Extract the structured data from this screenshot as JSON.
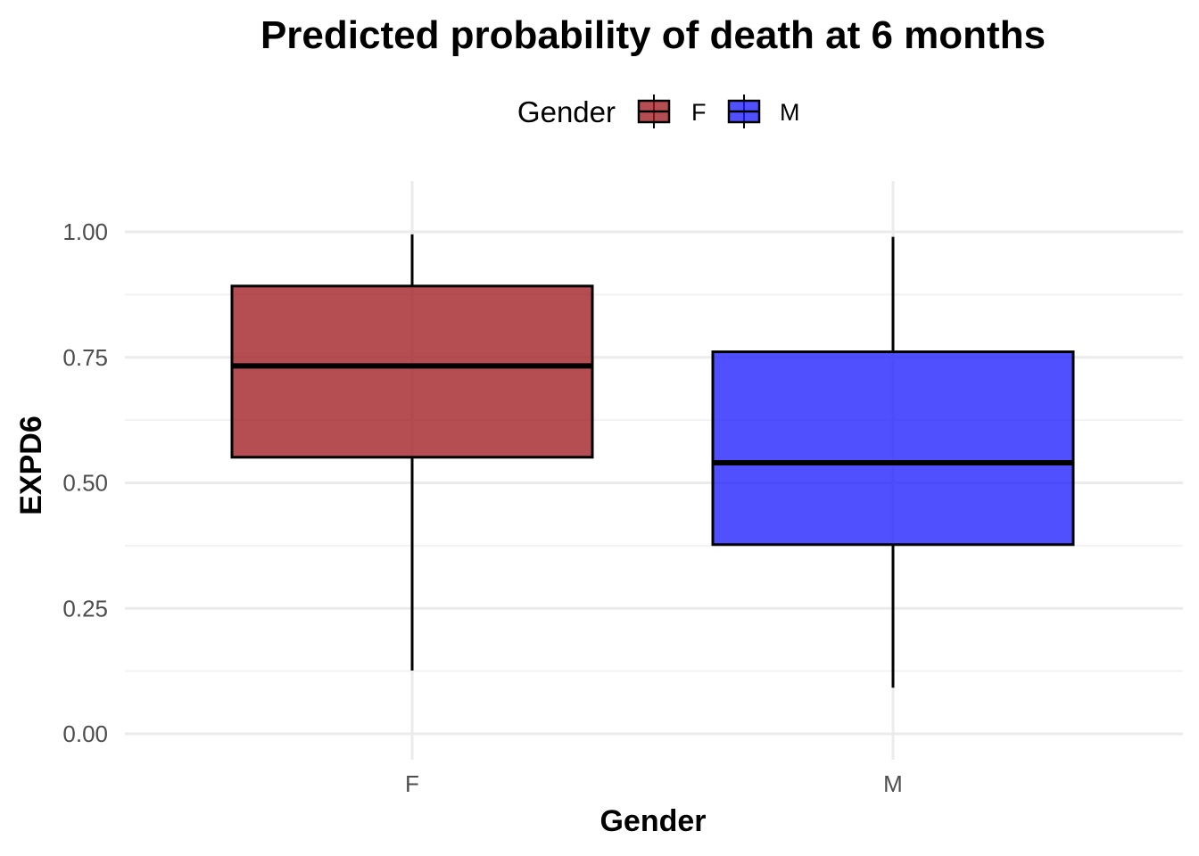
{
  "chart_data": {
    "type": "boxplot",
    "title": "Predicted probability of death at 6 months",
    "xlabel": "Gender",
    "ylabel": "EXPD6",
    "categories": [
      "F",
      "M"
    ],
    "ylim": [
      -0.01,
      1.1
    ],
    "yticks": [
      0.0,
      0.25,
      0.5,
      0.75,
      1.0
    ],
    "ytick_labels": [
      "0.00",
      "0.25",
      "0.50",
      "0.75",
      "1.00"
    ],
    "grid": true,
    "legend": {
      "title": "Gender",
      "position": "top",
      "entries": [
        "F",
        "M"
      ]
    },
    "series": [
      {
        "category": "F",
        "color": "#a01c22",
        "whisker_low": 0.126,
        "q1": 0.551,
        "median": 0.733,
        "q3": 0.892,
        "whisker_high": 0.995
      },
      {
        "category": "M",
        "color": "#1f1fff",
        "whisker_low": 0.092,
        "q1": 0.377,
        "median": 0.54,
        "q3": 0.761,
        "whisker_high": 0.99
      }
    ]
  }
}
